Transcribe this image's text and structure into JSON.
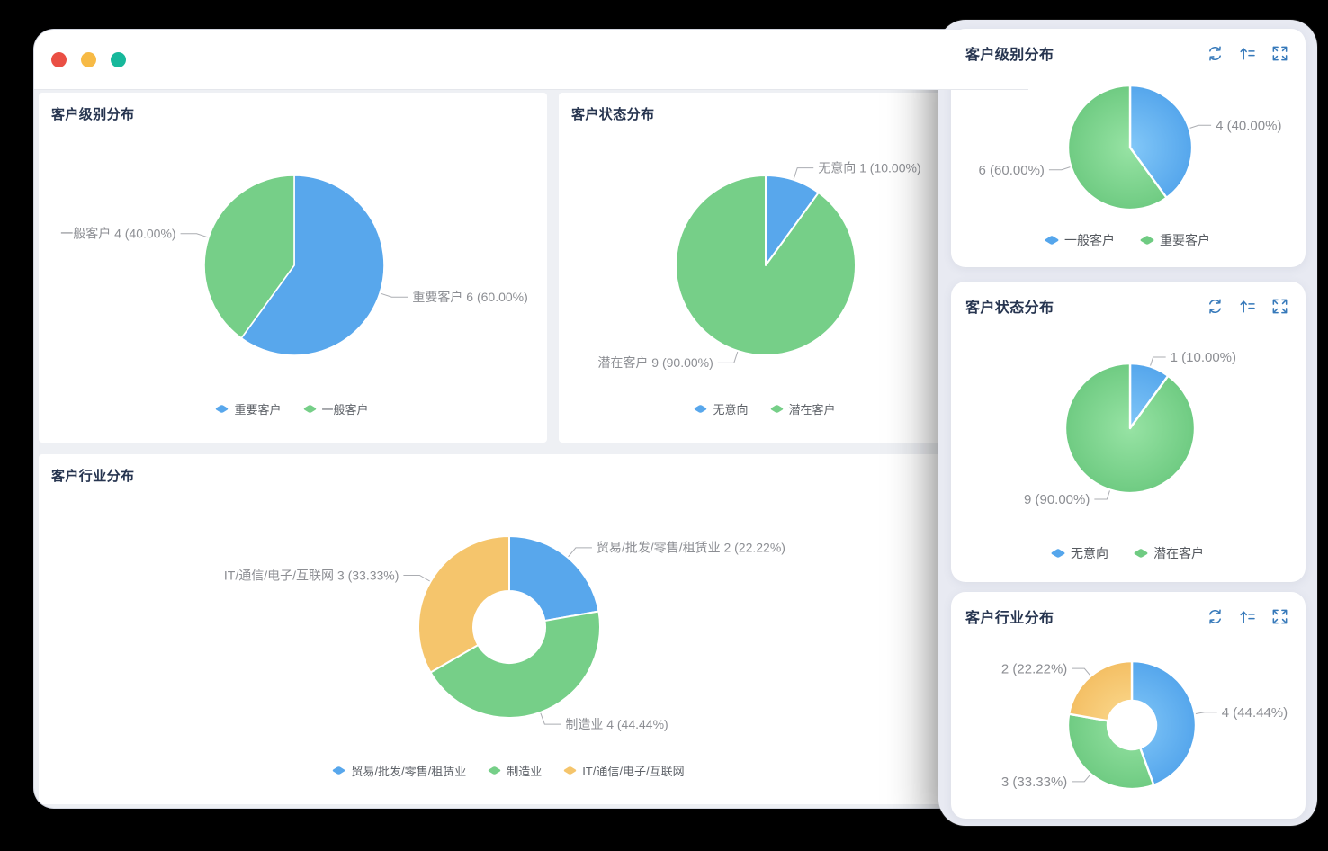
{
  "window": {
    "buttons": [
      {
        "name": "close",
        "color": "#EA4F44"
      },
      {
        "name": "minimize",
        "color": "#F7BA45"
      },
      {
        "name": "zoom",
        "color": "#17B89B"
      }
    ]
  },
  "palette": {
    "blue": "#58A7EC",
    "green": "#76CF88",
    "orange": "#F5C56C",
    "label_text": "#8C8E93",
    "label_line": "#ABADB2",
    "icon_blue": "#3679BA"
  },
  "charts": {
    "main_level": {
      "title": "客户级别分布",
      "type": "pie",
      "slices": [
        {
          "name": "重要客户",
          "value": 6,
          "percent": "60.00%",
          "label": "重要客户 6 (60.00%)",
          "color": "#58A7EC"
        },
        {
          "name": "一般客户",
          "value": 4,
          "percent": "40.00%",
          "label": "一般客户 4 (40.00%)",
          "color": "#76CF88"
        }
      ],
      "legend": [
        {
          "label": "重要客户",
          "color": "#58A7EC"
        },
        {
          "label": "一般客户",
          "color": "#76CF88"
        }
      ]
    },
    "main_status": {
      "title": "客户状态分布",
      "type": "pie",
      "slices": [
        {
          "name": "无意向",
          "value": 1,
          "percent": "10.00%",
          "label": "无意向 1 (10.00%)",
          "color": "#58A7EC"
        },
        {
          "name": "潜在客户",
          "value": 9,
          "percent": "90.00%",
          "label": "潜在客户 9 (90.00%)",
          "color": "#76CF88"
        }
      ],
      "legend": [
        {
          "label": "无意向",
          "color": "#58A7EC"
        },
        {
          "label": "潜在客户",
          "color": "#76CF88"
        }
      ]
    },
    "main_industry": {
      "title": "客户行业分布",
      "type": "donut",
      "slices": [
        {
          "name": "贸易/批发/零售/租赁业",
          "value": 2,
          "percent": "22.22%",
          "label": "贸易/批发/零售/租赁业 2 (22.22%)",
          "color": "#58A7EC"
        },
        {
          "name": "制造业",
          "value": 4,
          "percent": "44.44%",
          "label": "制造业 4 (44.44%)",
          "color": "#76CF88"
        },
        {
          "name": "IT/通信/电子/互联网",
          "value": 3,
          "percent": "33.33%",
          "label": "IT/通信/电子/互联网 3 (33.33%)",
          "color": "#F5C56C"
        }
      ],
      "legend": [
        {
          "label": "贸易/批发/零售/租赁业",
          "color": "#58A7EC"
        },
        {
          "label": "制造业",
          "color": "#76CF88"
        },
        {
          "label": "IT/通信/电子/互联网",
          "color": "#F5C56C"
        }
      ]
    },
    "side_level": {
      "title": "客户级别分布",
      "type": "pie",
      "slices": [
        {
          "name": "一般客户",
          "value": 4,
          "percent": "40.00%",
          "label": "4 (40.00%)",
          "color": "#55A6EC",
          "color_light": "#83C8F8"
        },
        {
          "name": "重要客户",
          "value": 6,
          "percent": "60.00%",
          "label": "6 (60.00%)",
          "color": "#6FCB82",
          "color_light": "#97E3A4"
        }
      ],
      "legend": [
        {
          "label": "一般客户",
          "color": "#55A6EC"
        },
        {
          "label": "重要客户",
          "color": "#6FCB82"
        }
      ]
    },
    "side_status": {
      "title": "客户状态分布",
      "type": "pie",
      "slices": [
        {
          "name": "无意向",
          "value": 1,
          "percent": "10.00%",
          "label": "1 (10.00%)",
          "color": "#55A6EC",
          "color_light": "#83C8F8"
        },
        {
          "name": "潜在客户",
          "value": 9,
          "percent": "90.00%",
          "label": "9 (90.00%)",
          "color": "#6FCB82",
          "color_light": "#97E3A4"
        }
      ],
      "legend": [
        {
          "label": "无意向",
          "color": "#55A6EC"
        },
        {
          "label": "潜在客户",
          "color": "#6FCB82"
        }
      ]
    },
    "side_industry": {
      "title": "客户行业分布",
      "type": "donut",
      "slices": [
        {
          "value": 4,
          "percent": "44.44%",
          "label": "4 (44.44%)",
          "color": "#55A6EC",
          "color_light": "#83C8F8"
        },
        {
          "value": 3,
          "percent": "33.33%",
          "label": "3 (33.33%)",
          "color": "#6FCB82",
          "color_light": "#97E3A4"
        },
        {
          "value": 2,
          "percent": "22.22%",
          "label": "2 (22.22%)",
          "color": "#F4BF64",
          "color_light": "#FBDC93"
        }
      ],
      "legend": []
    }
  }
}
